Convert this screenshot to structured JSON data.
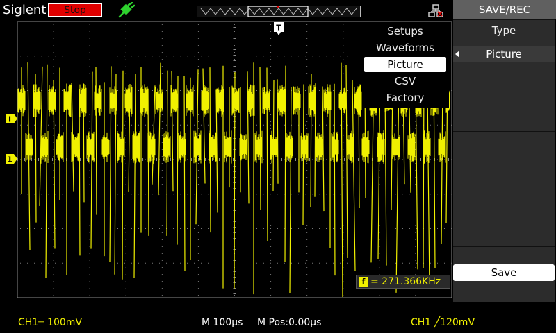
{
  "app": {
    "brand": "Siglent",
    "run_state": "Stop"
  },
  "colors": {
    "channel1": "#f0f000",
    "stop_bg": "#e00000",
    "grid": "#7a7a7a"
  },
  "icons": {
    "usb": "usb-plug-icon",
    "network": "network-disconnected-icon",
    "trigger_marker": "trigger-position-icon"
  },
  "markers": {
    "trigger_label": "T",
    "level_marker": "I",
    "channel_marker": "1"
  },
  "submenu": {
    "items": [
      {
        "label": "Setups",
        "selected": false
      },
      {
        "label": "Waveforms",
        "selected": false
      },
      {
        "label": "Picture",
        "selected": true
      },
      {
        "label": "CSV",
        "selected": false
      },
      {
        "label": "Factory",
        "selected": false
      }
    ]
  },
  "panel": {
    "title": "SAVE/REC",
    "type_label": "Type",
    "type_value": "Picture",
    "save_label": "Save"
  },
  "measurement": {
    "icon_label": "f",
    "frequency": "= 271.366KHz"
  },
  "status": {
    "ch1_scale": "CH1═ 100mV",
    "timebase": "M 100µs",
    "position": "M Pos:0.00µs",
    "trigger": "CH1 ╱120mV"
  }
}
